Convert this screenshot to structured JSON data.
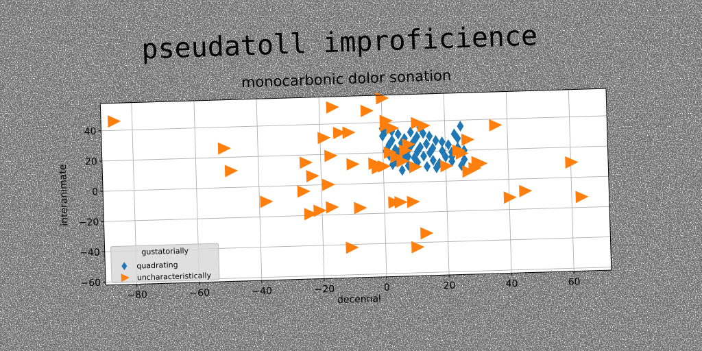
{
  "chart_data": {
    "type": "scatter",
    "title": "pseudatoll improficience",
    "subtitle": "monocarbonic dolor sonation",
    "xlabel": "decennal",
    "ylabel": "interanimate",
    "xlim": [
      -90,
      72
    ],
    "ylim": [
      -62,
      58
    ],
    "xticks": [
      -80,
      -60,
      -40,
      -20,
      0,
      20,
      40,
      60
    ],
    "yticks": [
      -60,
      -40,
      -20,
      0,
      20,
      40
    ],
    "grid": true,
    "legend": {
      "position": "lower-left",
      "title": "gustatorially",
      "entries": [
        "quadrating",
        "uncharacteristically"
      ]
    },
    "series": [
      {
        "name": "quadrating",
        "marker": "diamond",
        "color": "#1f77b4",
        "points": [
          [
            0,
            36
          ],
          [
            0,
            31
          ],
          [
            1,
            34
          ],
          [
            1,
            21
          ],
          [
            2,
            25
          ],
          [
            2,
            18
          ],
          [
            3,
            28
          ],
          [
            3,
            12
          ],
          [
            4,
            22
          ],
          [
            4,
            14
          ],
          [
            5,
            32
          ],
          [
            5,
            20
          ],
          [
            6,
            8
          ],
          [
            6,
            26
          ],
          [
            7,
            29
          ],
          [
            7,
            17
          ],
          [
            8,
            21
          ],
          [
            8,
            11
          ],
          [
            9,
            33
          ],
          [
            9,
            24
          ],
          [
            10,
            16
          ],
          [
            10,
            27
          ],
          [
            11,
            20
          ],
          [
            11,
            13
          ],
          [
            12,
            36
          ],
          [
            12,
            23
          ],
          [
            13,
            32
          ],
          [
            13,
            17
          ],
          [
            14,
            10
          ],
          [
            14,
            25
          ],
          [
            15,
            19
          ],
          [
            15,
            30
          ],
          [
            16,
            14
          ],
          [
            16,
            22
          ],
          [
            17,
            27
          ],
          [
            18,
            12
          ],
          [
            19,
            20
          ],
          [
            19,
            26
          ],
          [
            20,
            16
          ],
          [
            21,
            24
          ],
          [
            22,
            19
          ],
          [
            22,
            13
          ],
          [
            23,
            31
          ],
          [
            24,
            22
          ],
          [
            24,
            28
          ],
          [
            25,
            36
          ],
          [
            26,
            20
          ],
          [
            26,
            14
          ],
          [
            25,
            10
          ],
          [
            22,
            16
          ],
          [
            17,
            9
          ],
          [
            8,
            17
          ],
          [
            3,
            34
          ],
          [
            11,
            30
          ]
        ]
      },
      {
        "name": "uncharacteristically",
        "marker": "triangle-right",
        "color": "#ff7f0e",
        "points": [
          [
            -86,
            46
          ],
          [
            -51,
            26
          ],
          [
            -49,
            11
          ],
          [
            -38,
            -10
          ],
          [
            -26,
            -4
          ],
          [
            -25,
            15
          ],
          [
            -24,
            -19
          ],
          [
            -23,
            6
          ],
          [
            -21,
            -17
          ],
          [
            -19,
            31
          ],
          [
            -18,
            0
          ],
          [
            -17,
            19
          ],
          [
            -17,
            -15
          ],
          [
            -16,
            51
          ],
          [
            -14,
            34
          ],
          [
            -11,
            34
          ],
          [
            -11,
            -42
          ],
          [
            -10,
            13
          ],
          [
            -8,
            -16
          ],
          [
            -5,
            48
          ],
          [
            -3,
            13
          ],
          [
            -2,
            10
          ],
          [
            0,
            56
          ],
          [
            0,
            11
          ],
          [
            1,
            41
          ],
          [
            1,
            38
          ],
          [
            2,
            20
          ],
          [
            3,
            -13
          ],
          [
            3,
            36
          ],
          [
            4,
            17
          ],
          [
            5,
            -13
          ],
          [
            6,
            14
          ],
          [
            7,
            21
          ],
          [
            8,
            25
          ],
          [
            9,
            -13
          ],
          [
            10,
            10
          ],
          [
            10,
            -43
          ],
          [
            11,
            39
          ],
          [
            13,
            37
          ],
          [
            13,
            -34
          ],
          [
            20,
            10
          ],
          [
            24,
            20
          ],
          [
            25,
            18
          ],
          [
            27,
            27
          ],
          [
            27,
            6
          ],
          [
            29,
            8
          ],
          [
            30,
            12
          ],
          [
            31,
            11
          ],
          [
            36,
            36
          ],
          [
            40,
            -12
          ],
          [
            45,
            -8
          ],
          [
            60,
            10
          ],
          [
            63,
            -13
          ]
        ]
      }
    ]
  }
}
